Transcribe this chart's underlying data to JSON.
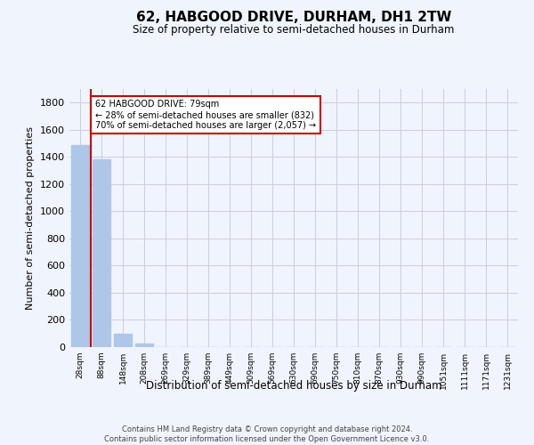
{
  "title": "62, HABGOOD DRIVE, DURHAM, DH1 2TW",
  "subtitle": "Size of property relative to semi-detached houses in Durham",
  "xlabel": "Distribution of semi-detached houses by size in Durham",
  "ylabel": "Number of semi-detached properties",
  "categories": [
    "28sqm",
    "88sqm",
    "148sqm",
    "208sqm",
    "269sqm",
    "329sqm",
    "389sqm",
    "449sqm",
    "509sqm",
    "569sqm",
    "630sqm",
    "690sqm",
    "750sqm",
    "810sqm",
    "870sqm",
    "930sqm",
    "990sqm",
    "1051sqm",
    "1111sqm",
    "1171sqm",
    "1231sqm"
  ],
  "values": [
    1490,
    1380,
    96,
    28,
    3,
    1,
    0,
    0,
    0,
    0,
    0,
    0,
    0,
    0,
    0,
    0,
    0,
    0,
    0,
    0,
    0
  ],
  "bar_color": "#aec6e8",
  "marker_line_color": "#cc0000",
  "marker_bar_index": 1,
  "annotation_title": "62 HABGOOD DRIVE: 79sqm",
  "annotation_line1": "← 28% of semi-detached houses are smaller (832)",
  "annotation_line2": "70% of semi-detached houses are larger (2,057) →",
  "annotation_box_color": "#cc0000",
  "ylim": [
    0,
    1900
  ],
  "yticks": [
    0,
    200,
    400,
    600,
    800,
    1000,
    1200,
    1400,
    1600,
    1800
  ],
  "footer_line1": "Contains HM Land Registry data © Crown copyright and database right 2024.",
  "footer_line2": "Contains public sector information licensed under the Open Government Licence v3.0.",
  "background_color": "#f0f4fc",
  "plot_bg_color": "#f0f4fc",
  "grid_color": "#ccccdd"
}
